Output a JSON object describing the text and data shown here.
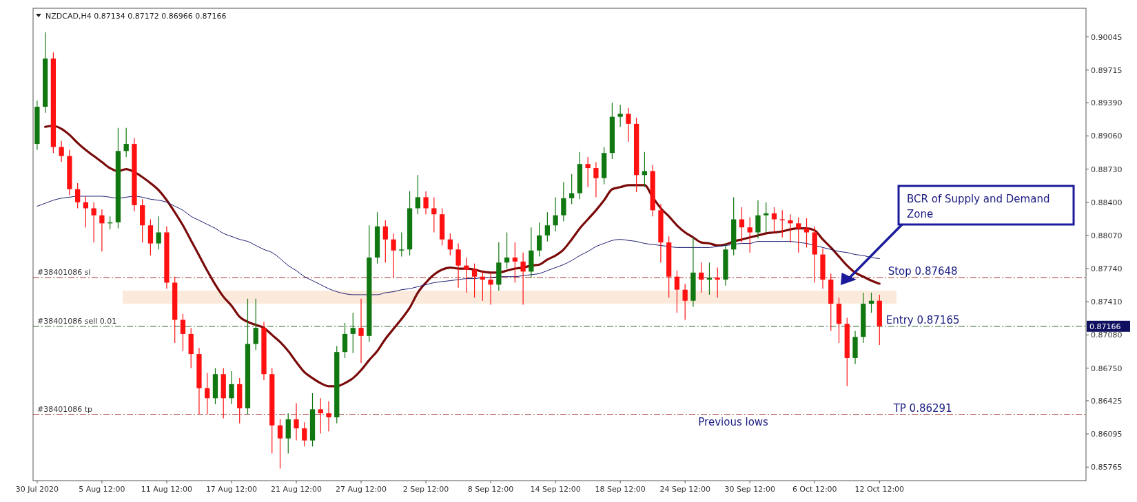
{
  "chart_data": {
    "type": "candlestick",
    "title": "NZDCAD,H4  0.87134 0.87172 0.86966 0.87166",
    "categories": [
      "30 Jul 2020",
      null,
      null,
      null,
      null,
      null,
      null,
      null,
      "5 Aug 12:00",
      null,
      null,
      null,
      null,
      null,
      null,
      null,
      "11 Aug 12:00",
      null,
      null,
      null,
      null,
      null,
      null,
      null,
      "17 Aug 12:00",
      null,
      null,
      null,
      null,
      null,
      null,
      null,
      "21 Aug 12:00",
      null,
      null,
      null,
      null,
      null,
      null,
      null,
      "27 Aug 12:00",
      null,
      null,
      null,
      null,
      null,
      null,
      null,
      "2 Sep 12:00",
      null,
      null,
      null,
      null,
      null,
      null,
      null,
      "8 Sep 12:00",
      null,
      null,
      null,
      null,
      null,
      null,
      null,
      "14 Sep 12:00",
      null,
      null,
      null,
      null,
      null,
      null,
      null,
      "18 Sep 12:00",
      null,
      null,
      null,
      null,
      null,
      null,
      null,
      "24 Sep 12:00",
      null,
      null,
      null,
      null,
      null,
      null,
      null,
      "30 Sep 12:00",
      null,
      null,
      null,
      null,
      null,
      null,
      null,
      "6 Oct 12:00",
      null,
      null,
      null,
      null,
      null,
      null,
      null,
      "12 Oct 12:00"
    ],
    "ohlc": [
      [
        0.8898,
        0.8941,
        0.8892,
        0.8935
      ],
      [
        0.8935,
        0.9009,
        0.8929,
        0.8983
      ],
      [
        0.8983,
        0.8989,
        0.8889,
        0.8895
      ],
      [
        0.8895,
        0.8901,
        0.888,
        0.8886
      ],
      [
        0.8886,
        0.8892,
        0.8847,
        0.8853
      ],
      [
        0.8853,
        0.8859,
        0.8834,
        0.884
      ],
      [
        0.884,
        0.8846,
        0.8815,
        0.8834
      ],
      [
        0.8834,
        0.884,
        0.88,
        0.8827
      ],
      [
        0.8827,
        0.8833,
        0.8791,
        0.8819
      ],
      [
        0.8819,
        0.8826,
        0.8813,
        0.882
      ],
      [
        0.882,
        0.8914,
        0.8814,
        0.8891
      ],
      [
        0.8891,
        0.8914,
        0.8885,
        0.8898
      ],
      [
        0.8898,
        0.8904,
        0.8831,
        0.8837
      ],
      [
        0.8837,
        0.8843,
        0.88,
        0.8817
      ],
      [
        0.8817,
        0.8823,
        0.8787,
        0.8799
      ],
      [
        0.8799,
        0.8826,
        0.8793,
        0.881
      ],
      [
        0.881,
        0.8816,
        0.8754,
        0.876
      ],
      [
        0.876,
        0.8766,
        0.87,
        0.8723
      ],
      [
        0.8723,
        0.8729,
        0.8692,
        0.8709
      ],
      [
        0.8709,
        0.8715,
        0.8675,
        0.8689
      ],
      [
        0.8689,
        0.8695,
        0.8629,
        0.8655
      ],
      [
        0.8655,
        0.867,
        0.8629,
        0.8645
      ],
      [
        0.8645,
        0.8675,
        0.8639,
        0.8669
      ],
      [
        0.8669,
        0.8675,
        0.8625,
        0.8645
      ],
      [
        0.8645,
        0.8672,
        0.8639,
        0.8659
      ],
      [
        0.8659,
        0.8665,
        0.862,
        0.8635
      ],
      [
        0.8635,
        0.8744,
        0.8629,
        0.8699
      ],
      [
        0.8699,
        0.8744,
        0.8693,
        0.8715
      ],
      [
        0.8715,
        0.8721,
        0.8663,
        0.8669
      ],
      [
        0.8669,
        0.8675,
        0.859,
        0.8618
      ],
      [
        0.8618,
        0.8624,
        0.8575,
        0.8605
      ],
      [
        0.8605,
        0.863,
        0.859,
        0.8624
      ],
      [
        0.8624,
        0.864,
        0.8603,
        0.8615
      ],
      [
        0.8615,
        0.8621,
        0.8597,
        0.8603
      ],
      [
        0.8603,
        0.865,
        0.8597,
        0.8634
      ],
      [
        0.8634,
        0.8645,
        0.861,
        0.863
      ],
      [
        0.863,
        0.8642,
        0.8612,
        0.8626
      ],
      [
        0.8626,
        0.8697,
        0.862,
        0.8691
      ],
      [
        0.8691,
        0.872,
        0.8685,
        0.8709
      ],
      [
        0.8709,
        0.873,
        0.869,
        0.8715
      ],
      [
        0.8715,
        0.8744,
        0.868,
        0.8707
      ],
      [
        0.8707,
        0.8817,
        0.8701,
        0.8785
      ],
      [
        0.8785,
        0.883,
        0.8779,
        0.8816
      ],
      [
        0.8816,
        0.8822,
        0.878,
        0.8803
      ],
      [
        0.8803,
        0.8809,
        0.8765,
        0.8792
      ],
      [
        0.8792,
        0.881,
        0.8786,
        0.8793
      ],
      [
        0.8793,
        0.8851,
        0.8787,
        0.8834
      ],
      [
        0.8834,
        0.8867,
        0.8828,
        0.8845
      ],
      [
        0.8845,
        0.8851,
        0.8828,
        0.8834
      ],
      [
        0.8834,
        0.8845,
        0.881,
        0.8828
      ],
      [
        0.8828,
        0.8834,
        0.8797,
        0.8803
      ],
      [
        0.8803,
        0.8809,
        0.8787,
        0.8793
      ],
      [
        0.8793,
        0.8799,
        0.8755,
        0.8777
      ],
      [
        0.8777,
        0.8785,
        0.875,
        0.8773
      ],
      [
        0.8773,
        0.8779,
        0.8745,
        0.8766
      ],
      [
        0.8766,
        0.8772,
        0.8742,
        0.8763
      ],
      [
        0.8763,
        0.8769,
        0.8738,
        0.8758
      ],
      [
        0.8758,
        0.88,
        0.8752,
        0.878
      ],
      [
        0.878,
        0.881,
        0.8774,
        0.8785
      ],
      [
        0.8785,
        0.88,
        0.876,
        0.8781
      ],
      [
        0.8781,
        0.879,
        0.8738,
        0.8771
      ],
      [
        0.8771,
        0.8815,
        0.8765,
        0.8792
      ],
      [
        0.8792,
        0.882,
        0.8786,
        0.8807
      ],
      [
        0.8807,
        0.883,
        0.8801,
        0.8817
      ],
      [
        0.8817,
        0.8845,
        0.8811,
        0.8827
      ],
      [
        0.8827,
        0.886,
        0.8821,
        0.8844
      ],
      [
        0.8844,
        0.8868,
        0.8838,
        0.8849
      ],
      [
        0.8849,
        0.889,
        0.8843,
        0.8878
      ],
      [
        0.8878,
        0.8885,
        0.8855,
        0.8874
      ],
      [
        0.8874,
        0.888,
        0.8845,
        0.8864
      ],
      [
        0.8864,
        0.8895,
        0.8858,
        0.8889
      ],
      [
        0.8889,
        0.8939,
        0.8883,
        0.8925
      ],
      [
        0.8925,
        0.8937,
        0.8915,
        0.8928
      ],
      [
        0.8928,
        0.8934,
        0.89,
        0.8918
      ],
      [
        0.8918,
        0.8924,
        0.885,
        0.8867
      ],
      [
        0.8867,
        0.889,
        0.8855,
        0.8871
      ],
      [
        0.8871,
        0.8877,
        0.8826,
        0.8832
      ],
      [
        0.8832,
        0.8838,
        0.878,
        0.88
      ],
      [
        0.88,
        0.8806,
        0.8745,
        0.8766
      ],
      [
        0.8766,
        0.8772,
        0.873,
        0.8753
      ],
      [
        0.8753,
        0.8759,
        0.8723,
        0.8742
      ],
      [
        0.8742,
        0.8805,
        0.8736,
        0.877
      ],
      [
        0.877,
        0.878,
        0.875,
        0.8763
      ],
      [
        0.8763,
        0.878,
        0.8748,
        0.8765
      ],
      [
        0.8765,
        0.8775,
        0.8745,
        0.8763
      ],
      [
        0.8763,
        0.8799,
        0.8757,
        0.8793
      ],
      [
        0.8793,
        0.8845,
        0.8787,
        0.8823
      ],
      [
        0.8823,
        0.8835,
        0.88,
        0.8815
      ],
      [
        0.8815,
        0.8825,
        0.879,
        0.881
      ],
      [
        0.881,
        0.8842,
        0.8804,
        0.8827
      ],
      [
        0.8827,
        0.884,
        0.881,
        0.8829
      ],
      [
        0.8829,
        0.8835,
        0.881,
        0.8823
      ],
      [
        0.8823,
        0.8832,
        0.8805,
        0.8822
      ],
      [
        0.8822,
        0.8828,
        0.88,
        0.8819
      ],
      [
        0.8819,
        0.8825,
        0.879,
        0.8814
      ],
      [
        0.8814,
        0.8824,
        0.8795,
        0.881
      ],
      [
        0.881,
        0.8816,
        0.876,
        0.8788
      ],
      [
        0.8788,
        0.8794,
        0.8754,
        0.8763
      ],
      [
        0.8763,
        0.8769,
        0.8712,
        0.8739
      ],
      [
        0.8739,
        0.8745,
        0.87,
        0.8719
      ],
      [
        0.8719,
        0.8725,
        0.8657,
        0.8685
      ],
      [
        0.8685,
        0.8712,
        0.8679,
        0.8706
      ],
      [
        0.8706,
        0.875,
        0.87,
        0.8739
      ],
      [
        0.8739,
        0.875,
        0.873,
        0.8742
      ],
      [
        0.8742,
        0.8748,
        0.8698,
        0.87166
      ]
    ],
    "colors": [
      "#117711",
      "#117711",
      "#ff1111",
      "#ff1111",
      "#ff1111",
      "#ff1111",
      "#ff1111",
      "#ff1111",
      "#ff1111",
      "#117711",
      "#117711",
      "#117711",
      "#ff1111",
      "#ff1111",
      "#ff1111",
      "#117711",
      "#ff1111",
      "#ff1111",
      "#ff1111",
      "#ff1111",
      "#ff1111",
      "#ff1111",
      "#117711",
      "#ff1111",
      "#117711",
      "#ff1111",
      "#117711",
      "#117711",
      "#ff1111",
      "#ff1111",
      "#ff1111",
      "#117711",
      "#ff1111",
      "#ff1111",
      "#117711",
      "#ff1111",
      "#ff1111",
      "#117711",
      "#117711",
      "#117711",
      "#ff1111",
      "#117711",
      "#117711",
      "#ff1111",
      "#ff1111",
      "#117711",
      "#117711",
      "#117711",
      "#ff1111",
      "#ff1111",
      "#ff1111",
      "#ff1111",
      "#ff1111",
      "#ff1111",
      "#ff1111",
      "#ff1111",
      "#ff1111",
      "#117711",
      "#117711",
      "#ff1111",
      "#ff1111",
      "#117711",
      "#117711",
      "#117711",
      "#117711",
      "#117711",
      "#117711",
      "#117711",
      "#ff1111",
      "#ff1111",
      "#117711",
      "#117711",
      "#117711",
      "#ff1111",
      "#ff1111",
      "#117711",
      "#ff1111",
      "#ff1111",
      "#ff1111",
      "#ff1111",
      "#ff1111",
      "#117711",
      "#ff1111",
      "#117711",
      "#ff1111",
      "#117711",
      "#117711",
      "#ff1111",
      "#ff1111",
      "#117711",
      "#117711",
      "#ff1111",
      "#ff1111",
      "#ff1111",
      "#ff1111",
      "#ff1111",
      "#ff1111",
      "#ff1111",
      "#ff1111",
      "#ff1111",
      "#ff1111",
      "#117711",
      "#117711",
      "#117711",
      "#ff1111"
    ],
    "series": [
      {
        "type": "line",
        "color": "#7a0a0a",
        "values": [
          null,
          0.8915,
          0.8916,
          0.8913,
          0.8907,
          0.8899,
          0.8892,
          0.8886,
          0.888,
          0.8874,
          0.8871,
          0.8873,
          0.887,
          0.8865,
          0.8859,
          0.8852,
          0.8842,
          0.883,
          0.8817,
          0.8802,
          0.8787,
          0.8772,
          0.8758,
          0.8746,
          0.8737,
          0.8726,
          0.8721,
          0.8718,
          0.8715,
          0.8708,
          0.8701,
          0.8692,
          0.8681,
          0.8671,
          0.8665,
          0.866,
          0.8657,
          0.8657,
          0.866,
          0.8665,
          0.8673,
          0.8683,
          0.8692,
          0.8704,
          0.8714,
          0.8724,
          0.8735,
          0.875,
          0.876,
          0.8768,
          0.8773,
          0.8775,
          0.8774,
          0.8774,
          0.8773,
          0.8771,
          0.877,
          0.877,
          0.8772,
          0.8774,
          0.8775,
          0.8777,
          0.8778,
          0.8783,
          0.8787,
          0.8793,
          0.8803,
          0.8814,
          0.8823,
          0.8832,
          0.8842,
          0.8853,
          0.8855,
          0.8857,
          0.8857,
          0.8857,
          0.8845,
          0.8834,
          0.8826,
          0.8817,
          0.881,
          0.8805,
          0.88,
          0.8799,
          0.8797,
          0.8798,
          0.8801,
          0.8803,
          0.8805,
          0.8807,
          0.8809,
          0.881,
          0.8811,
          0.8813,
          0.8814,
          0.8814,
          0.8812,
          0.8803,
          0.8795,
          0.8786,
          0.8777,
          0.877,
          0.8766,
          0.8762,
          0.8759
        ]
      },
      {
        "type": "line",
        "color": "#1a1a70",
        "values": [
          0.8836,
          0.8839,
          0.8842,
          0.8844,
          0.8845,
          0.8846,
          0.8846,
          0.8846,
          0.8846,
          0.8845,
          0.8844,
          0.8845,
          0.8846,
          0.8845,
          0.8843,
          0.8842,
          0.884,
          0.8836,
          0.8832,
          0.8826,
          0.8822,
          0.8818,
          0.8814,
          0.8809,
          0.8806,
          0.8803,
          0.8801,
          0.8797,
          0.8793,
          0.879,
          0.8784,
          0.8777,
          0.8772,
          0.8766,
          0.8762,
          0.8758,
          0.8754,
          0.8751,
          0.8749,
          0.8748,
          0.8748,
          0.8748,
          0.8748,
          0.875,
          0.8751,
          0.8753,
          0.8754,
          0.8756,
          0.8758,
          0.876,
          0.8761,
          0.8762,
          0.8763,
          0.8764,
          0.8764,
          0.8765,
          0.8765,
          0.8766,
          0.8766,
          0.8766,
          0.8767,
          0.8768,
          0.8769,
          0.8772,
          0.8775,
          0.8778,
          0.8782,
          0.8787,
          0.8791,
          0.8796,
          0.8799,
          0.8802,
          0.8803,
          0.8802,
          0.8801,
          0.8799,
          0.8798,
          0.8797,
          0.8796,
          0.8795,
          0.8795,
          0.8795,
          0.8795,
          0.8795,
          0.8796,
          0.8797,
          0.8798,
          0.8799,
          0.8799,
          0.8801,
          0.8801,
          0.8801,
          0.8801,
          0.8801,
          0.88,
          0.8799,
          0.8797,
          0.8795,
          0.8793,
          0.8791,
          0.879,
          0.8788,
          0.8787,
          0.8785,
          0.8784
        ]
      }
    ],
    "ylim": [
      0.8563,
      0.9033
    ],
    "yticks": [
      0.85765,
      0.86095,
      0.86425,
      {
        "value": 0.8675,
        "label": "0.86750"
      },
      {
        "value": 0.8708,
        "label": "0.87080"
      },
      {
        "value": 0.8741,
        "label": "0.87410"
      },
      {
        "value": 0.8774,
        "label": "0.87740"
      },
      {
        "value": 0.8807,
        "label": "0.88070"
      },
      {
        "value": 0.884,
        "label": "0.88400"
      },
      {
        "value": 0.8873,
        "label": "0.88730"
      },
      {
        "value": 0.8906,
        "label": "0.89060"
      },
      {
        "value": 0.8939,
        "label": "0.89390"
      },
      0.89715,
      0.90045
    ],
    "ref_lines": [
      {
        "axis": "y",
        "value": 0.87648,
        "label": "Stop 0.87648",
        "color": "#a0302a",
        "line_style": "dashed"
      },
      {
        "axis": "y",
        "value": 0.87165,
        "label": "Entry 0.87165",
        "color": "#2e6b2e",
        "line_style": "dashed"
      },
      {
        "axis": "y",
        "value": 0.86291,
        "label": "TP 0.86291",
        "color": "#a0302a",
        "line_style": "dashed"
      }
    ],
    "bands": [
      {
        "axis": "y",
        "from": 0.8739,
        "to": 0.8752,
        "color": "#fbeadc"
      }
    ],
    "annotations": [
      {
        "text": "#38401086 sl",
        "y": 0.87648
      },
      {
        "text": "#38401086 sell 0.01",
        "y": 0.87165
      },
      {
        "text": "#38401086 tp",
        "y": 0.86291
      },
      {
        "text": "Previous lows",
        "y": 0.86291
      },
      "BCR of Supply and Demand Zone",
      "0.87166"
    ],
    "grid": false
  }
}
